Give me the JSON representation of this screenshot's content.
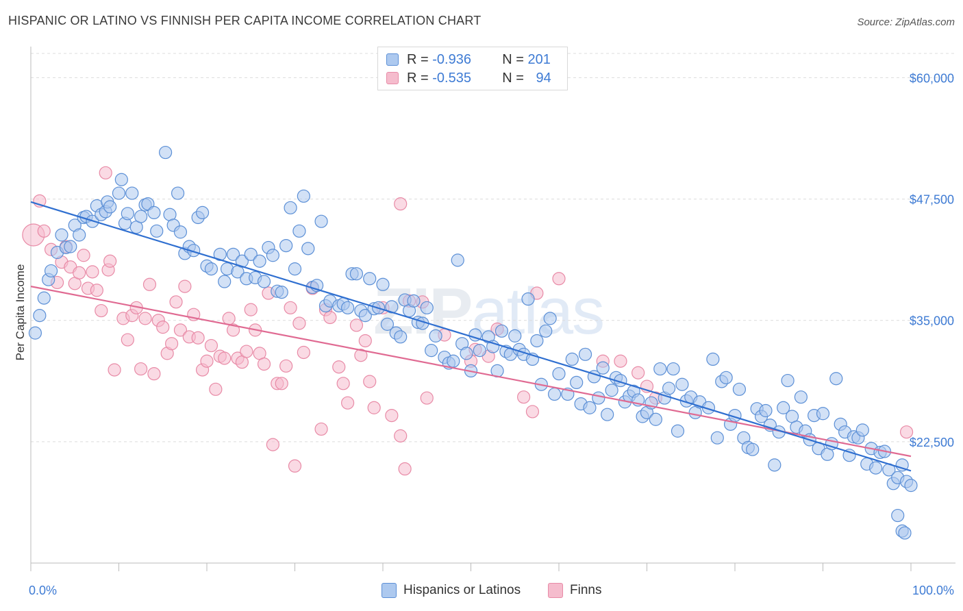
{
  "title": "HISPANIC OR LATINO VS FINNISH PER CAPITA INCOME CORRELATION CHART",
  "source": "Source: ZipAtlas.com",
  "watermark": {
    "zip": "ZIP",
    "atlas": "atlas"
  },
  "stats": {
    "row1": {
      "r_label": "R = ",
      "r_value": "-0.936",
      "n_label": "N = ",
      "n_value": "201"
    },
    "row2": {
      "r_label": "R = ",
      "r_value": "-0.535",
      "n_label": "N = ",
      "n_value": "94"
    }
  },
  "legend": {
    "series1": "Hispanics or Latinos",
    "series2": "Finns"
  },
  "colors": {
    "blue_fill": "#adc9ef",
    "blue_stroke": "#5b8fd6",
    "blue_line": "#2f6fd0",
    "pink_fill": "#f5bccd",
    "pink_stroke": "#e88aa6",
    "pink_line": "#e06a92",
    "accent_text": "#3e7bd4",
    "grid": "#dcdcdc"
  },
  "chart_data": {
    "type": "scatter",
    "title": "HISPANIC OR LATINO VS FINNISH PER CAPITA INCOME CORRELATION CHART",
    "xlabel": "",
    "ylabel": "Per Capita Income",
    "xlim": [
      0,
      100
    ],
    "ylim": [
      10000,
      62500
    ],
    "x_tick_labels": [
      "0.0%",
      "100.0%"
    ],
    "y_ticks": [
      22500,
      35000,
      47500,
      60000
    ],
    "y_tick_labels": [
      "$22,500",
      "$35,000",
      "$47,500",
      "$60,000"
    ],
    "grid": "horizontal dashed",
    "legend_position": "bottom-center",
    "series": [
      {
        "name": "Hispanics or Latinos",
        "r": -0.936,
        "n": 201,
        "trend": {
          "x": [
            0,
            100
          ],
          "y": [
            47200,
            19500
          ]
        },
        "points": [
          [
            0.5,
            33700
          ],
          [
            1,
            35500
          ],
          [
            1.5,
            37300
          ],
          [
            2,
            39200
          ],
          [
            2.3,
            40100
          ],
          [
            3,
            42000
          ],
          [
            3.5,
            43800
          ],
          [
            4,
            42500
          ],
          [
            4.5,
            42600
          ],
          [
            5,
            44800
          ],
          [
            5.5,
            43800
          ],
          [
            6,
            45600
          ],
          [
            6.3,
            45700
          ],
          [
            7,
            45200
          ],
          [
            7.5,
            46800
          ],
          [
            8,
            45900
          ],
          [
            8.5,
            46200
          ],
          [
            8.7,
            47200
          ],
          [
            9,
            46700
          ],
          [
            10,
            48100
          ],
          [
            10.3,
            49500
          ],
          [
            10.7,
            45000
          ],
          [
            11,
            46000
          ],
          [
            11.5,
            48100
          ],
          [
            12,
            44600
          ],
          [
            12.5,
            45700
          ],
          [
            13,
            46900
          ],
          [
            13.3,
            47000
          ],
          [
            14,
            46100
          ],
          [
            14.3,
            44200
          ],
          [
            15.3,
            52300
          ],
          [
            15.8,
            45900
          ],
          [
            16.2,
            44800
          ],
          [
            16.7,
            48100
          ],
          [
            17,
            44100
          ],
          [
            17.5,
            41900
          ],
          [
            18,
            42600
          ],
          [
            18.5,
            42200
          ],
          [
            19,
            45600
          ],
          [
            19.5,
            46100
          ],
          [
            20,
            40600
          ],
          [
            20.5,
            40300
          ],
          [
            21.5,
            41800
          ],
          [
            22,
            39000
          ],
          [
            22.3,
            40300
          ],
          [
            23,
            41800
          ],
          [
            23.5,
            40000
          ],
          [
            24,
            41100
          ],
          [
            24.5,
            39300
          ],
          [
            25,
            41800
          ],
          [
            25.5,
            39400
          ],
          [
            26,
            41100
          ],
          [
            26.5,
            39000
          ],
          [
            27,
            42500
          ],
          [
            27.5,
            41700
          ],
          [
            28,
            38000
          ],
          [
            28.5,
            37900
          ],
          [
            29,
            42700
          ],
          [
            29.5,
            46600
          ],
          [
            30,
            40300
          ],
          [
            30.5,
            44200
          ],
          [
            31,
            47800
          ],
          [
            31.5,
            42400
          ],
          [
            32,
            38400
          ],
          [
            32.5,
            38600
          ],
          [
            33,
            45200
          ],
          [
            33.5,
            36500
          ],
          [
            34,
            37000
          ],
          [
            35,
            36500
          ],
          [
            35.5,
            36700
          ],
          [
            36,
            36300
          ],
          [
            36.5,
            39800
          ],
          [
            37,
            39800
          ],
          [
            37.5,
            36000
          ],
          [
            38,
            35500
          ],
          [
            38.5,
            39300
          ],
          [
            39,
            36200
          ],
          [
            39.5,
            36300
          ],
          [
            40,
            38700
          ],
          [
            40.5,
            34600
          ],
          [
            41,
            36400
          ],
          [
            41.5,
            33700
          ],
          [
            42,
            33300
          ],
          [
            42.5,
            37100
          ],
          [
            43,
            36000
          ],
          [
            43.5,
            37000
          ],
          [
            44,
            34800
          ],
          [
            44.5,
            34700
          ],
          [
            45,
            36300
          ],
          [
            45.5,
            31900
          ],
          [
            46,
            33400
          ],
          [
            47,
            31200
          ],
          [
            47.5,
            30600
          ],
          [
            48,
            30800
          ],
          [
            48.5,
            41200
          ],
          [
            49,
            32600
          ],
          [
            49.5,
            31600
          ],
          [
            50,
            29800
          ],
          [
            50.5,
            33500
          ],
          [
            51,
            31900
          ],
          [
            52,
            33300
          ],
          [
            52.5,
            32300
          ],
          [
            53,
            29800
          ],
          [
            53.5,
            33900
          ],
          [
            54,
            31800
          ],
          [
            54.5,
            31500
          ],
          [
            55,
            33400
          ],
          [
            55.5,
            32000
          ],
          [
            56,
            31500
          ],
          [
            56.5,
            37200
          ],
          [
            57,
            31000
          ],
          [
            57.5,
            32900
          ],
          [
            58,
            28400
          ],
          [
            58.5,
            33900
          ],
          [
            59,
            35200
          ],
          [
            59.5,
            27400
          ],
          [
            60,
            29500
          ],
          [
            61,
            27400
          ],
          [
            61.5,
            31000
          ],
          [
            62,
            28600
          ],
          [
            62.5,
            26400
          ],
          [
            63,
            31500
          ],
          [
            63.5,
            26000
          ],
          [
            64,
            29200
          ],
          [
            64.5,
            27000
          ],
          [
            65,
            30100
          ],
          [
            65.5,
            25300
          ],
          [
            66,
            27800
          ],
          [
            66.5,
            29100
          ],
          [
            67,
            28800
          ],
          [
            67.5,
            26600
          ],
          [
            68,
            27200
          ],
          [
            68.5,
            27700
          ],
          [
            69,
            26800
          ],
          [
            69.5,
            25100
          ],
          [
            70,
            25500
          ],
          [
            70.5,
            26500
          ],
          [
            71,
            24800
          ],
          [
            71.5,
            30000
          ],
          [
            72,
            27000
          ],
          [
            72.5,
            28000
          ],
          [
            73,
            30000
          ],
          [
            73.5,
            23600
          ],
          [
            74,
            28400
          ],
          [
            74.5,
            26700
          ],
          [
            75,
            27100
          ],
          [
            75.5,
            25500
          ],
          [
            76,
            26600
          ],
          [
            77,
            26000
          ],
          [
            77.5,
            31000
          ],
          [
            78,
            22900
          ],
          [
            78.5,
            28700
          ],
          [
            79,
            29100
          ],
          [
            79.5,
            24300
          ],
          [
            80,
            25200
          ],
          [
            80.5,
            27900
          ],
          [
            81,
            22900
          ],
          [
            81.5,
            21900
          ],
          [
            82,
            21700
          ],
          [
            82.5,
            25900
          ],
          [
            83,
            25100
          ],
          [
            83.5,
            25700
          ],
          [
            84,
            24200
          ],
          [
            84.5,
            20100
          ],
          [
            85,
            23500
          ],
          [
            85.5,
            26000
          ],
          [
            86,
            28800
          ],
          [
            86.5,
            25100
          ],
          [
            87,
            24000
          ],
          [
            87.5,
            27100
          ],
          [
            88,
            23600
          ],
          [
            88.5,
            22700
          ],
          [
            89,
            25200
          ],
          [
            89.5,
            21800
          ],
          [
            90,
            25400
          ],
          [
            90.5,
            21200
          ],
          [
            91,
            22300
          ],
          [
            91.5,
            29000
          ],
          [
            92,
            24300
          ],
          [
            92.5,
            23500
          ],
          [
            93,
            21100
          ],
          [
            93.5,
            23000
          ],
          [
            94,
            22900
          ],
          [
            94.5,
            23700
          ],
          [
            95,
            20200
          ],
          [
            95.5,
            21800
          ],
          [
            96,
            19800
          ],
          [
            96.5,
            21400
          ],
          [
            97,
            21500
          ],
          [
            97.5,
            19600
          ],
          [
            98,
            18200
          ],
          [
            98.5,
            18800
          ],
          [
            99,
            20100
          ],
          [
            99.5,
            18400
          ],
          [
            100,
            18000
          ],
          [
            98.5,
            14900
          ],
          [
            99,
            13300
          ],
          [
            99.3,
            13100
          ]
        ]
      },
      {
        "name": "Finns",
        "r": -0.535,
        "n": 94,
        "trend": {
          "x": [
            0,
            100
          ],
          "y": [
            38500,
            21000
          ]
        },
        "points": [
          [
            0.3,
            43800
          ],
          [
            1,
            47300
          ],
          [
            1.5,
            44200
          ],
          [
            2.3,
            42300
          ],
          [
            3,
            38900
          ],
          [
            3.5,
            41000
          ],
          [
            4,
            42600
          ],
          [
            4.5,
            40500
          ],
          [
            5,
            38800
          ],
          [
            5.5,
            39900
          ],
          [
            6,
            41700
          ],
          [
            6.5,
            38300
          ],
          [
            7,
            40000
          ],
          [
            7.5,
            38100
          ],
          [
            8,
            36000
          ],
          [
            8.5,
            50200
          ],
          [
            8.8,
            40200
          ],
          [
            9,
            41100
          ],
          [
            9.5,
            29900
          ],
          [
            10.5,
            35200
          ],
          [
            11,
            33000
          ],
          [
            11.5,
            35500
          ],
          [
            12,
            36300
          ],
          [
            12.5,
            30000
          ],
          [
            13,
            35200
          ],
          [
            13.5,
            38700
          ],
          [
            14,
            29500
          ],
          [
            14.5,
            35000
          ],
          [
            15,
            34300
          ],
          [
            15.5,
            31600
          ],
          [
            16,
            32600
          ],
          [
            16.5,
            36900
          ],
          [
            17,
            34000
          ],
          [
            17.5,
            38500
          ],
          [
            18,
            33300
          ],
          [
            18.5,
            35600
          ],
          [
            19,
            33200
          ],
          [
            19.5,
            29900
          ],
          [
            20,
            30800
          ],
          [
            20.5,
            32400
          ],
          [
            21,
            27900
          ],
          [
            21.5,
            31300
          ],
          [
            22,
            31100
          ],
          [
            22.5,
            35200
          ],
          [
            23,
            34000
          ],
          [
            23.5,
            31100
          ],
          [
            24,
            30700
          ],
          [
            24.5,
            31800
          ],
          [
            25,
            36100
          ],
          [
            25.5,
            34000
          ],
          [
            26,
            31600
          ],
          [
            26.5,
            30500
          ],
          [
            27,
            37800
          ],
          [
            27.5,
            22200
          ],
          [
            28,
            28500
          ],
          [
            28.5,
            28500
          ],
          [
            29,
            30300
          ],
          [
            29.5,
            36300
          ],
          [
            30,
            20000
          ],
          [
            30.5,
            34700
          ],
          [
            31,
            31700
          ],
          [
            32,
            38300
          ],
          [
            33,
            23800
          ],
          [
            33.5,
            36100
          ],
          [
            34,
            35300
          ],
          [
            35,
            30200
          ],
          [
            35.5,
            28500
          ],
          [
            36,
            26500
          ],
          [
            37,
            34500
          ],
          [
            37.5,
            31400
          ],
          [
            38,
            32900
          ],
          [
            38.5,
            28700
          ],
          [
            39,
            26000
          ],
          [
            40,
            36300
          ],
          [
            41,
            25200
          ],
          [
            42,
            23100
          ],
          [
            42.5,
            19700
          ],
          [
            43,
            37000
          ],
          [
            45,
            27000
          ],
          [
            50,
            30800
          ],
          [
            52,
            31300
          ],
          [
            53,
            34100
          ],
          [
            56,
            27100
          ],
          [
            57,
            25600
          ],
          [
            57.5,
            37800
          ],
          [
            60,
            39300
          ],
          [
            65,
            30800
          ],
          [
            67,
            30800
          ],
          [
            69,
            29600
          ],
          [
            70,
            28200
          ],
          [
            71,
            27000
          ],
          [
            99.5,
            23500
          ],
          [
            42,
            47000
          ],
          [
            44.5,
            36900
          ],
          [
            47,
            33500
          ],
          [
            50.5,
            32000
          ]
        ]
      }
    ]
  }
}
